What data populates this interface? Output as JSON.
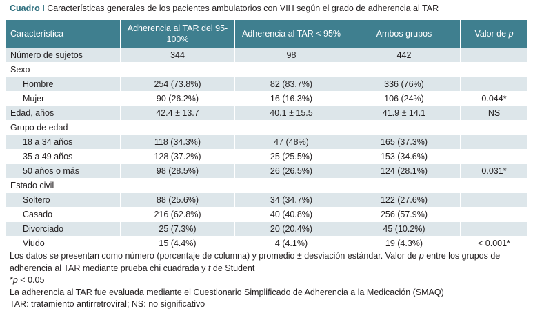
{
  "caption": {
    "label": "Cuadro I",
    "text": "Características generales de los pacientes ambulatorios con VIH según el grado de adherencia al TAR"
  },
  "table": {
    "headers": [
      "Característica",
      "Adherencia al TAR del 95-100%",
      "Adherencia al TAR < 95%",
      "Ambos grupos",
      "Valor de p"
    ],
    "rows": [
      {
        "label": "Número de sujetos",
        "indent": false,
        "cells": [
          "344",
          "98",
          "442",
          ""
        ]
      },
      {
        "label": "Sexo",
        "indent": false,
        "cells": [
          "",
          "",
          "",
          ""
        ]
      },
      {
        "label": "Hombre",
        "indent": true,
        "cells": [
          "254 (73.8%)",
          "82 (83.7%)",
          "336 (76%)",
          ""
        ]
      },
      {
        "label": "Mujer",
        "indent": true,
        "cells": [
          "90 (26.2%)",
          "16 (16.3%)",
          "106 (24%)",
          "0.044*"
        ]
      },
      {
        "label": "Edad, años",
        "indent": false,
        "cells": [
          "42.4 ± 13.7",
          "40.1 ± 15.5",
          "41.9 ± 14.1",
          "NS"
        ]
      },
      {
        "label": "Grupo de edad",
        "indent": false,
        "cells": [
          "",
          "",
          "",
          ""
        ]
      },
      {
        "label": "18 a 34 años",
        "indent": true,
        "cells": [
          "118 (34.3%)",
          "47 (48%)",
          "165 (37.3%)",
          ""
        ]
      },
      {
        "label": "35 a 49 años",
        "indent": true,
        "cells": [
          "128 (37.2%)",
          "25 (25.5%)",
          "153 (34.6%)",
          ""
        ]
      },
      {
        "label": "50 años o más",
        "indent": true,
        "cells": [
          "98 (28.5%)",
          "26 (26.5%)",
          "124 (28.1%)",
          "0.031*"
        ]
      },
      {
        "label": "Estado civil",
        "indent": false,
        "cells": [
          "",
          "",
          "",
          ""
        ]
      },
      {
        "label": "Soltero",
        "indent": true,
        "cells": [
          "88 (25.6%)",
          "34 (34.7%)",
          "122 (27.6%)",
          ""
        ]
      },
      {
        "label": "Casado",
        "indent": true,
        "cells": [
          "216 (62.8%)",
          "40 (40.8%)",
          "256 (57.9%)",
          ""
        ]
      },
      {
        "label": "Divorciado",
        "indent": true,
        "cells": [
          "25 (7.3%)",
          "20 (20.4%)",
          "45 (10.2%)",
          ""
        ]
      },
      {
        "label": "Viudo",
        "indent": true,
        "cells": [
          "15 (4.4%)",
          "4 (4.1%)",
          "19 (4.3%)",
          "< 0.001*"
        ]
      }
    ]
  },
  "notes": {
    "line1_a": "Los datos se presentan como número (porcentaje de columna) y promedio ± desviación estándar. Valor de ",
    "line1_p": "p",
    "line1_b": " entre los grupos de adherencia al TAR mediante prueba chi cuadrada y ",
    "line1_t": "t",
    "line1_c": " de Student",
    "sig_star": "*",
    "sig_p": "p",
    "sig_rest": " < 0.05",
    "smaq": "La adherencia al TAR fue evaluada mediante el Cuestionario Simplificado de Adherencia a la Medicación (SMAQ)",
    "abbrev": "TAR: tratamiento antirretroviral; NS: no significativo"
  },
  "colors": {
    "header_bg": "#3f7f8f",
    "stripe_bg": "#dde6ea",
    "label_color": "#2e6f7e"
  }
}
